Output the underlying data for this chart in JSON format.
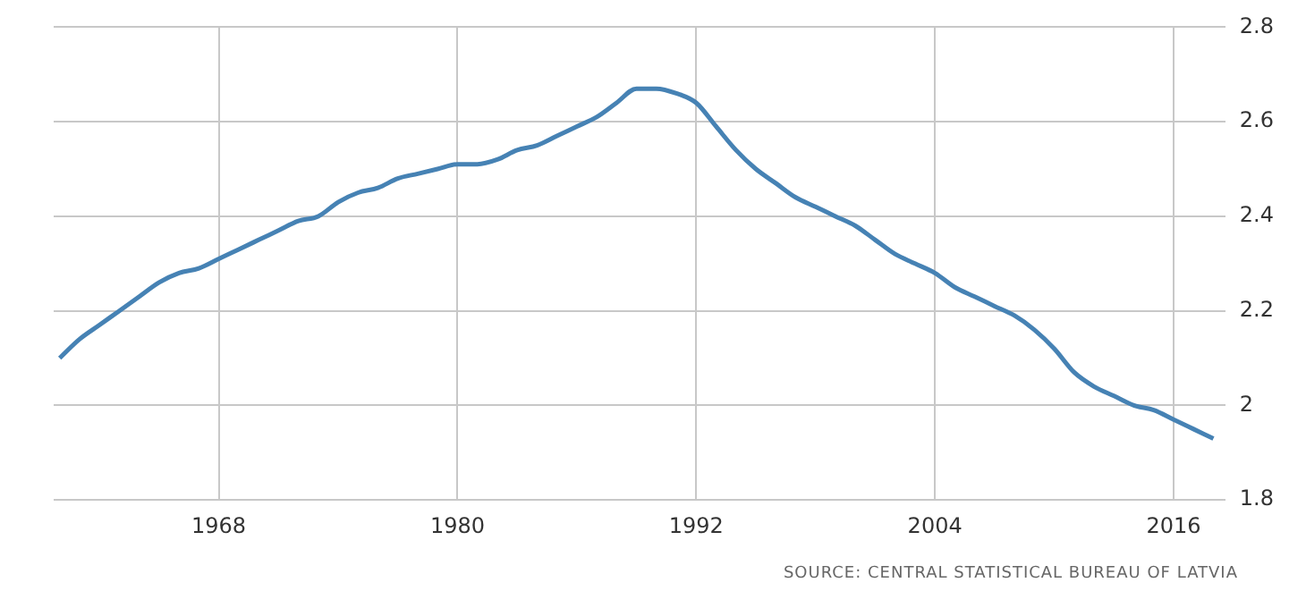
{
  "chart_data": {
    "type": "line",
    "x": [
      1960,
      1961,
      1962,
      1963,
      1964,
      1965,
      1966,
      1967,
      1968,
      1969,
      1970,
      1971,
      1972,
      1973,
      1974,
      1975,
      1976,
      1977,
      1978,
      1979,
      1980,
      1981,
      1982,
      1983,
      1984,
      1985,
      1986,
      1987,
      1988,
      1989,
      1990,
      1991,
      1992,
      1993,
      1994,
      1995,
      1996,
      1997,
      1998,
      1999,
      2000,
      2001,
      2002,
      2003,
      2004,
      2005,
      2006,
      2007,
      2008,
      2009,
      2010,
      2011,
      2012,
      2013,
      2014,
      2015,
      2016,
      2017,
      2018
    ],
    "series": [
      {
        "color": "#4682b4",
        "values": [
          2.1,
          2.14,
          2.17,
          2.2,
          2.23,
          2.26,
          2.28,
          2.29,
          2.31,
          2.33,
          2.35,
          2.37,
          2.39,
          2.4,
          2.43,
          2.45,
          2.46,
          2.48,
          2.49,
          2.5,
          2.51,
          2.51,
          2.52,
          2.54,
          2.55,
          2.57,
          2.59,
          2.61,
          2.64,
          2.67,
          2.67,
          2.66,
          2.64,
          2.59,
          2.54,
          2.5,
          2.47,
          2.44,
          2.42,
          2.4,
          2.38,
          2.35,
          2.32,
          2.3,
          2.28,
          2.25,
          2.23,
          2.21,
          2.19,
          2.16,
          2.12,
          2.07,
          2.04,
          2.02,
          2.0,
          1.99,
          1.97,
          1.95,
          1.93
        ]
      }
    ],
    "xlim": [
      1959.7,
      2018.6
    ],
    "xticks": [
      1968,
      1980,
      1992,
      2004,
      2016
    ],
    "ylim": [
      1.8,
      2.8
    ],
    "yticks": [
      1.8,
      2,
      2.2,
      2.4,
      2.6,
      2.8
    ],
    "grid": true,
    "legend": false,
    "marker": "none",
    "line_style": "solid",
    "annotations": [
      "SOURCE: CENTRAL STATISTICAL BUREAU OF LATVIA"
    ]
  }
}
